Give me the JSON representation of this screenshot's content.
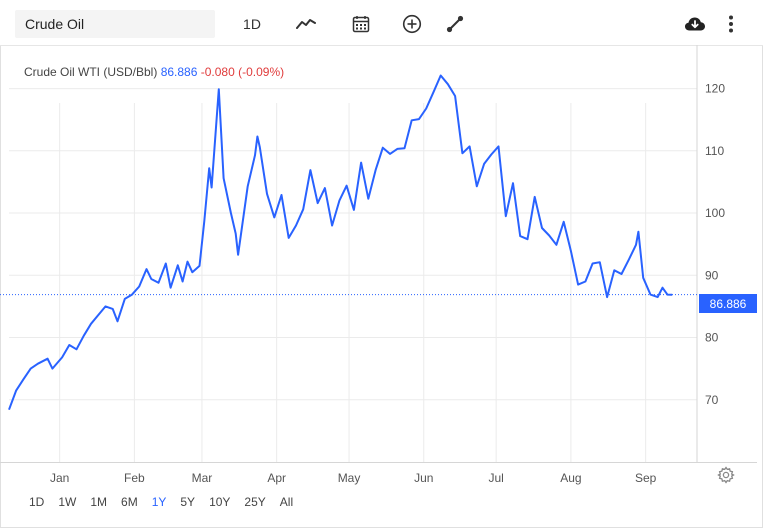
{
  "toolbar": {
    "symbol_value": "Crude Oil",
    "interval_label": "1D",
    "icons": [
      "line-chart-icon",
      "calendar-icon",
      "plus-circle-icon",
      "draw-line-icon",
      "cloud-download-icon",
      "more-vertical-icon"
    ]
  },
  "legend": {
    "name": "Crude Oil WTI (USD/Bbl)",
    "price": "86.886",
    "change": "-0.080 (-0.09%)"
  },
  "price_tag": "86.886",
  "ranges": [
    {
      "label": "1D",
      "active": false
    },
    {
      "label": "1W",
      "active": false
    },
    {
      "label": "1M",
      "active": false
    },
    {
      "label": "6M",
      "active": false
    },
    {
      "label": "1Y",
      "active": true
    },
    {
      "label": "5Y",
      "active": false
    },
    {
      "label": "10Y",
      "active": false
    },
    {
      "label": "25Y",
      "active": false
    },
    {
      "label": "All",
      "active": false
    }
  ],
  "colors": {
    "line": "#2962ff",
    "grid": "#ebebeb",
    "change_negative": "#e03c3c"
  },
  "chart_data": {
    "type": "line",
    "title": "Crude Oil WTI (USD/Bbl)",
    "xlabel": "",
    "ylabel": "",
    "ylim": [
      60,
      127
    ],
    "y_ticks": [
      70,
      80,
      90,
      100,
      110,
      120
    ],
    "x_ticks": [
      "Jan",
      "Feb",
      "Mar",
      "Apr",
      "May",
      "Jun",
      "Jul",
      "Aug",
      "Sep"
    ],
    "x_tick_dates": [
      "2022-01-01",
      "2022-02-01",
      "2022-03-01",
      "2022-04-01",
      "2022-05-01",
      "2022-06-01",
      "2022-07-01",
      "2022-08-01",
      "2022-09-01"
    ],
    "x_range": [
      "2021-12-11",
      "2022-09-14"
    ],
    "grid": true,
    "last_value": 86.886,
    "series": [
      {
        "values": [
          [
            "2021-12-11",
            68.4
          ],
          [
            "2021-12-14",
            71.5
          ],
          [
            "2021-12-17",
            73.3
          ],
          [
            "2021-12-20",
            75.0
          ],
          [
            "2021-12-23",
            75.8
          ],
          [
            "2021-12-27",
            76.6
          ],
          [
            "2021-12-29",
            75.0
          ],
          [
            "2022-01-02",
            76.8
          ],
          [
            "2022-01-05",
            78.8
          ],
          [
            "2022-01-08",
            78.1
          ],
          [
            "2022-01-11",
            80.3
          ],
          [
            "2022-01-14",
            82.2
          ],
          [
            "2022-01-17",
            83.6
          ],
          [
            "2022-01-20",
            85.0
          ],
          [
            "2022-01-23",
            84.6
          ],
          [
            "2022-01-25",
            82.6
          ],
          [
            "2022-01-28",
            86.2
          ],
          [
            "2022-01-31",
            86.9
          ],
          [
            "2022-02-03",
            88.2
          ],
          [
            "2022-02-06",
            91.0
          ],
          [
            "2022-02-08",
            89.4
          ],
          [
            "2022-02-11",
            88.8
          ],
          [
            "2022-02-14",
            91.9
          ],
          [
            "2022-02-16",
            88.0
          ],
          [
            "2022-02-19",
            91.6
          ],
          [
            "2022-02-21",
            89.0
          ],
          [
            "2022-02-23",
            92.2
          ],
          [
            "2022-02-25",
            90.5
          ],
          [
            "2022-02-28",
            91.5
          ],
          [
            "2022-03-02",
            98.7
          ],
          [
            "2022-03-04",
            107.2
          ],
          [
            "2022-03-05",
            104.1
          ],
          [
            "2022-03-08",
            119.9
          ],
          [
            "2022-03-10",
            105.6
          ],
          [
            "2022-03-13",
            100.0
          ],
          [
            "2022-03-15",
            96.7
          ],
          [
            "2022-03-16",
            93.3
          ],
          [
            "2022-03-20",
            104.3
          ],
          [
            "2022-03-23",
            109.3
          ],
          [
            "2022-03-24",
            112.3
          ],
          [
            "2022-03-25",
            110.6
          ],
          [
            "2022-03-28",
            103.1
          ],
          [
            "2022-03-31",
            99.3
          ],
          [
            "2022-04-03",
            102.9
          ],
          [
            "2022-04-06",
            96.0
          ],
          [
            "2022-04-09",
            98.0
          ],
          [
            "2022-04-12",
            100.6
          ],
          [
            "2022-04-15",
            106.9
          ],
          [
            "2022-04-18",
            101.6
          ],
          [
            "2022-04-21",
            104.0
          ],
          [
            "2022-04-24",
            98.0
          ],
          [
            "2022-04-27",
            102.0
          ],
          [
            "2022-04-30",
            104.4
          ],
          [
            "2022-05-03",
            100.5
          ],
          [
            "2022-05-06",
            108.1
          ],
          [
            "2022-05-09",
            102.3
          ],
          [
            "2022-05-12",
            106.9
          ],
          [
            "2022-05-15",
            110.5
          ],
          [
            "2022-05-18",
            109.5
          ],
          [
            "2022-05-21",
            110.3
          ],
          [
            "2022-05-24",
            110.4
          ],
          [
            "2022-05-27",
            114.9
          ],
          [
            "2022-05-30",
            115.1
          ],
          [
            "2022-06-02",
            116.8
          ],
          [
            "2022-06-05",
            119.4
          ],
          [
            "2022-06-08",
            122.1
          ],
          [
            "2022-06-11",
            120.7
          ],
          [
            "2022-06-14",
            118.8
          ],
          [
            "2022-06-17",
            109.6
          ],
          [
            "2022-06-20",
            110.7
          ],
          [
            "2022-06-23",
            104.3
          ],
          [
            "2022-06-26",
            107.9
          ],
          [
            "2022-06-29",
            109.4
          ],
          [
            "2022-07-02",
            110.7
          ],
          [
            "2022-07-05",
            99.5
          ],
          [
            "2022-07-08",
            104.8
          ],
          [
            "2022-07-11",
            96.3
          ],
          [
            "2022-07-14",
            95.8
          ],
          [
            "2022-07-17",
            102.6
          ],
          [
            "2022-07-20",
            97.6
          ],
          [
            "2022-07-23",
            96.4
          ],
          [
            "2022-07-26",
            94.9
          ],
          [
            "2022-07-29",
            98.6
          ],
          [
            "2022-08-01",
            93.9
          ],
          [
            "2022-08-04",
            88.5
          ],
          [
            "2022-08-07",
            89.0
          ],
          [
            "2022-08-10",
            91.9
          ],
          [
            "2022-08-13",
            92.1
          ],
          [
            "2022-08-16",
            86.5
          ],
          [
            "2022-08-19",
            90.8
          ],
          [
            "2022-08-22",
            90.2
          ],
          [
            "2022-08-25",
            92.5
          ],
          [
            "2022-08-28",
            94.9
          ],
          [
            "2022-08-29",
            97.0
          ],
          [
            "2022-08-31",
            89.6
          ],
          [
            "2022-09-03",
            86.9
          ],
          [
            "2022-09-06",
            86.5
          ],
          [
            "2022-09-08",
            88.0
          ],
          [
            "2022-09-10",
            86.9
          ],
          [
            "2022-09-12",
            86.886
          ]
        ]
      }
    ]
  }
}
